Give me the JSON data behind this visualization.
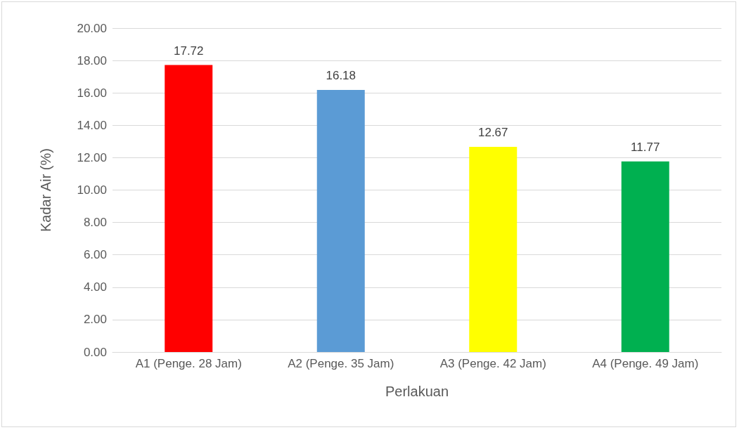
{
  "chart_data": {
    "type": "bar",
    "xlabel": "Perlakuan",
    "ylabel": "Kadar Air (%)",
    "categories": [
      "A1 (Penge. 28 Jam)",
      "A2 (Penge. 35 Jam)",
      "A3 (Penge. 42 Jam)",
      "A4 (Penge. 49 Jam)"
    ],
    "values": [
      17.72,
      16.18,
      12.67,
      11.77
    ],
    "colors": [
      "#ff0000",
      "#5b9bd5",
      "#ffff00",
      "#00b050"
    ],
    "ylim": [
      0,
      20
    ],
    "yticks": [
      {
        "value": 0,
        "label": "0.00"
      },
      {
        "value": 2,
        "label": "2.00"
      },
      {
        "value": 4,
        "label": "4.00"
      },
      {
        "value": 6,
        "label": "6.00"
      },
      {
        "value": 8,
        "label": "8.00"
      },
      {
        "value": 10,
        "label": "10.00"
      },
      {
        "value": 12,
        "label": "12.00"
      },
      {
        "value": 14,
        "label": "14.00"
      },
      {
        "value": 16,
        "label": "16.00"
      },
      {
        "value": 18,
        "label": "18.00"
      },
      {
        "value": 20,
        "label": "20.00"
      }
    ],
    "data_labels": true,
    "grid": "y"
  }
}
